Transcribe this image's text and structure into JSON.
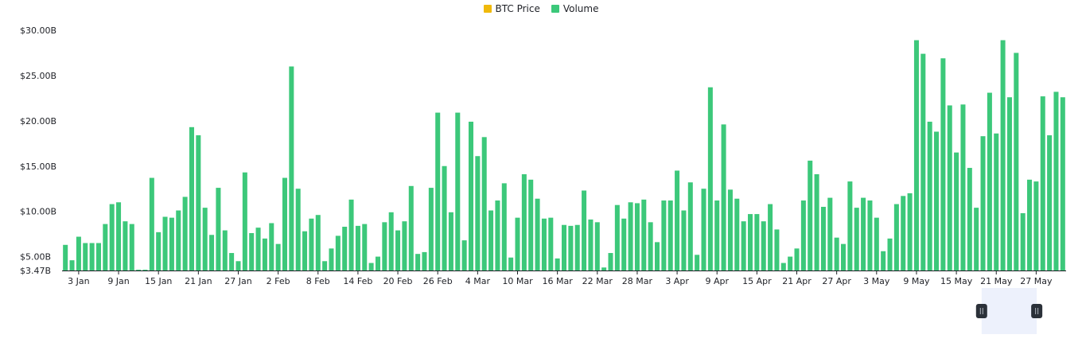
{
  "legend": {
    "items": [
      {
        "label": "BTC Price",
        "color": "#f0b90b"
      },
      {
        "label": "Volume",
        "color": "#3cc87a"
      }
    ]
  },
  "chart_data": {
    "type": "bar",
    "y_axis": {
      "ticks": [
        {
          "value": 3.47,
          "label": "$3.47B"
        },
        {
          "value": 5,
          "label": "$5.00B"
        },
        {
          "value": 10,
          "label": "$10.00B"
        },
        {
          "value": 15,
          "label": "$15.00B"
        },
        {
          "value": 20,
          "label": "$20.00B"
        },
        {
          "value": 25,
          "label": "$25.00B"
        },
        {
          "value": 30,
          "label": "$30.00B"
        }
      ],
      "ylim": [
        3.47,
        30.5
      ],
      "unit": "B USD"
    },
    "x_axis": {
      "start": "1 Jan",
      "ticks": [
        "3 Jan",
        "9 Jan",
        "15 Jan",
        "21 Jan",
        "27 Jan",
        "2 Feb",
        "8 Feb",
        "14 Feb",
        "20 Feb",
        "26 Feb",
        "4 Mar",
        "10 Mar",
        "16 Mar",
        "22 Mar",
        "28 Mar",
        "3 Apr",
        "9 Apr",
        "15 Apr",
        "21 Apr",
        "27 Apr",
        "3 May",
        "9 May",
        "15 May",
        "21 May",
        "27 May"
      ]
    },
    "series": [
      {
        "name": "Volume",
        "color": "#3cc87a",
        "values": [
          6.3,
          4.6,
          7.2,
          6.5,
          6.5,
          6.5,
          8.6,
          10.8,
          11.0,
          8.9,
          8.6,
          3.5,
          3.5,
          13.7,
          7.7,
          9.4,
          9.3,
          10.1,
          11.6,
          19.3,
          18.4,
          10.4,
          7.4,
          12.6,
          7.9,
          5.4,
          4.5,
          14.3,
          7.6,
          8.2,
          7.0,
          8.7,
          6.4,
          13.7,
          26.0,
          12.5,
          7.8,
          9.2,
          9.6,
          4.5,
          5.9,
          7.3,
          8.3,
          11.3,
          8.4,
          8.6,
          4.3,
          5.0,
          8.8,
          9.9,
          7.9,
          8.9,
          12.8,
          5.3,
          5.5,
          12.6,
          20.9,
          15.0,
          9.9,
          20.9,
          6.8,
          19.9,
          16.1,
          18.2,
          10.1,
          11.2,
          13.1,
          4.9,
          9.3,
          14.1,
          13.5,
          11.4,
          9.2,
          9.3,
          4.8,
          8.5,
          8.4,
          8.5,
          12.3,
          9.1,
          8.8,
          3.8,
          5.4,
          10.7,
          9.2,
          11.0,
          10.9,
          11.3,
          8.8,
          6.6,
          11.2,
          11.2,
          14.5,
          10.1,
          13.2,
          5.2,
          12.5,
          23.7,
          11.2,
          19.6,
          12.4,
          11.4,
          8.9,
          9.7,
          9.7,
          8.9,
          10.8,
          8.0,
          4.3,
          5.0,
          5.9,
          11.2,
          15.6,
          14.1,
          10.5,
          11.5,
          7.1,
          6.4,
          13.3,
          10.4,
          11.5,
          11.2,
          9.3,
          5.6,
          7.0,
          10.8,
          11.7,
          12.0,
          28.9,
          27.4,
          19.9,
          18.8,
          26.9,
          21.7,
          16.5,
          21.8,
          14.8,
          10.4,
          18.3,
          23.1,
          18.6,
          28.9,
          22.6,
          27.5,
          9.8,
          13.5,
          13.3,
          22.7,
          18.4,
          23.2,
          22.6
        ]
      },
      {
        "name": "BTC Price",
        "color": "#f0b90b",
        "values": []
      }
    ],
    "legend_placement": "top-center",
    "grid": false
  },
  "navigator": {
    "selection_start_fraction": 0.9,
    "selection_end_fraction": 0.97
  }
}
